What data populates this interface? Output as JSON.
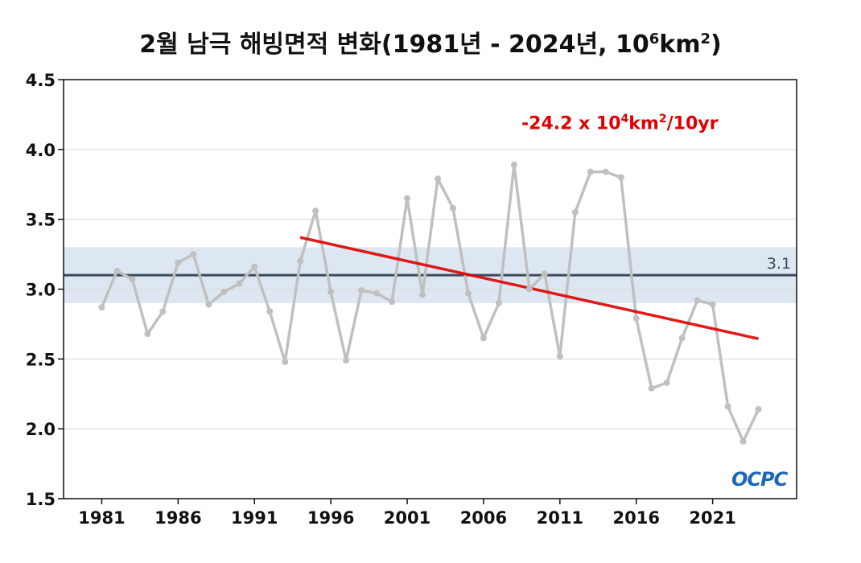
{
  "title": {
    "prefix": "2월 남극 해빙면적 변화(1981년 - 2024년, 10",
    "exp1": "6",
    "middle": "km",
    "exp2": "2",
    "suffix": ")"
  },
  "trend_label": {
    "prefix": "-24.2 x 10",
    "exp1": "4",
    "middle": "km",
    "exp2": "2",
    "suffix": "/10yr"
  },
  "reference_label": "3.1",
  "logo_text": "OCPC",
  "colors": {
    "series": "#c0c0c0",
    "trend": "#e00000",
    "reference": "#3b4a5e",
    "band": "#dde7f1",
    "logo": "#1e66b8"
  },
  "chart_data": {
    "type": "line",
    "x": [
      1981,
      1982,
      1983,
      1984,
      1985,
      1986,
      1987,
      1988,
      1989,
      1990,
      1991,
      1992,
      1993,
      1994,
      1995,
      1996,
      1997,
      1998,
      1999,
      2000,
      2001,
      2002,
      2003,
      2004,
      2005,
      2006,
      2007,
      2008,
      2009,
      2010,
      2011,
      2012,
      2013,
      2014,
      2015,
      2016,
      2017,
      2018,
      2019,
      2020,
      2021,
      2022,
      2023,
      2024
    ],
    "series": [
      {
        "values": [
          2.87,
          3.13,
          3.07,
          2.68,
          2.84,
          3.19,
          3.25,
          2.89,
          2.98,
          3.04,
          3.16,
          2.84,
          2.48,
          3.2,
          3.56,
          2.98,
          2.49,
          2.99,
          2.97,
          2.91,
          3.65,
          2.96,
          3.79,
          3.58,
          2.97,
          2.65,
          2.9,
          3.89,
          3.0,
          3.11,
          2.52,
          3.55,
          3.84,
          3.84,
          3.8,
          2.79,
          2.29,
          2.33,
          2.65,
          2.92,
          2.89,
          2.16,
          1.91,
          2.14
        ]
      }
    ],
    "trend": {
      "x": [
        1994,
        2024
      ],
      "y": [
        3.37,
        2.645
      ],
      "rate": "-24.2 x 10^4 km^2/10yr"
    },
    "reference_line": 3.1,
    "reference_band": [
      2.9,
      3.3
    ],
    "xticks": [
      1981,
      1986,
      1991,
      1996,
      2001,
      2006,
      2011,
      2016,
      2021
    ],
    "yticks": [
      "1.5",
      "2.0",
      "2.5",
      "3.0",
      "3.5",
      "4.0",
      "4.5"
    ],
    "ylim": [
      1.5,
      4.5
    ],
    "xlim": [
      1978.5,
      2026.5
    ],
    "grid": true,
    "xlabel": "",
    "ylabel": ""
  }
}
